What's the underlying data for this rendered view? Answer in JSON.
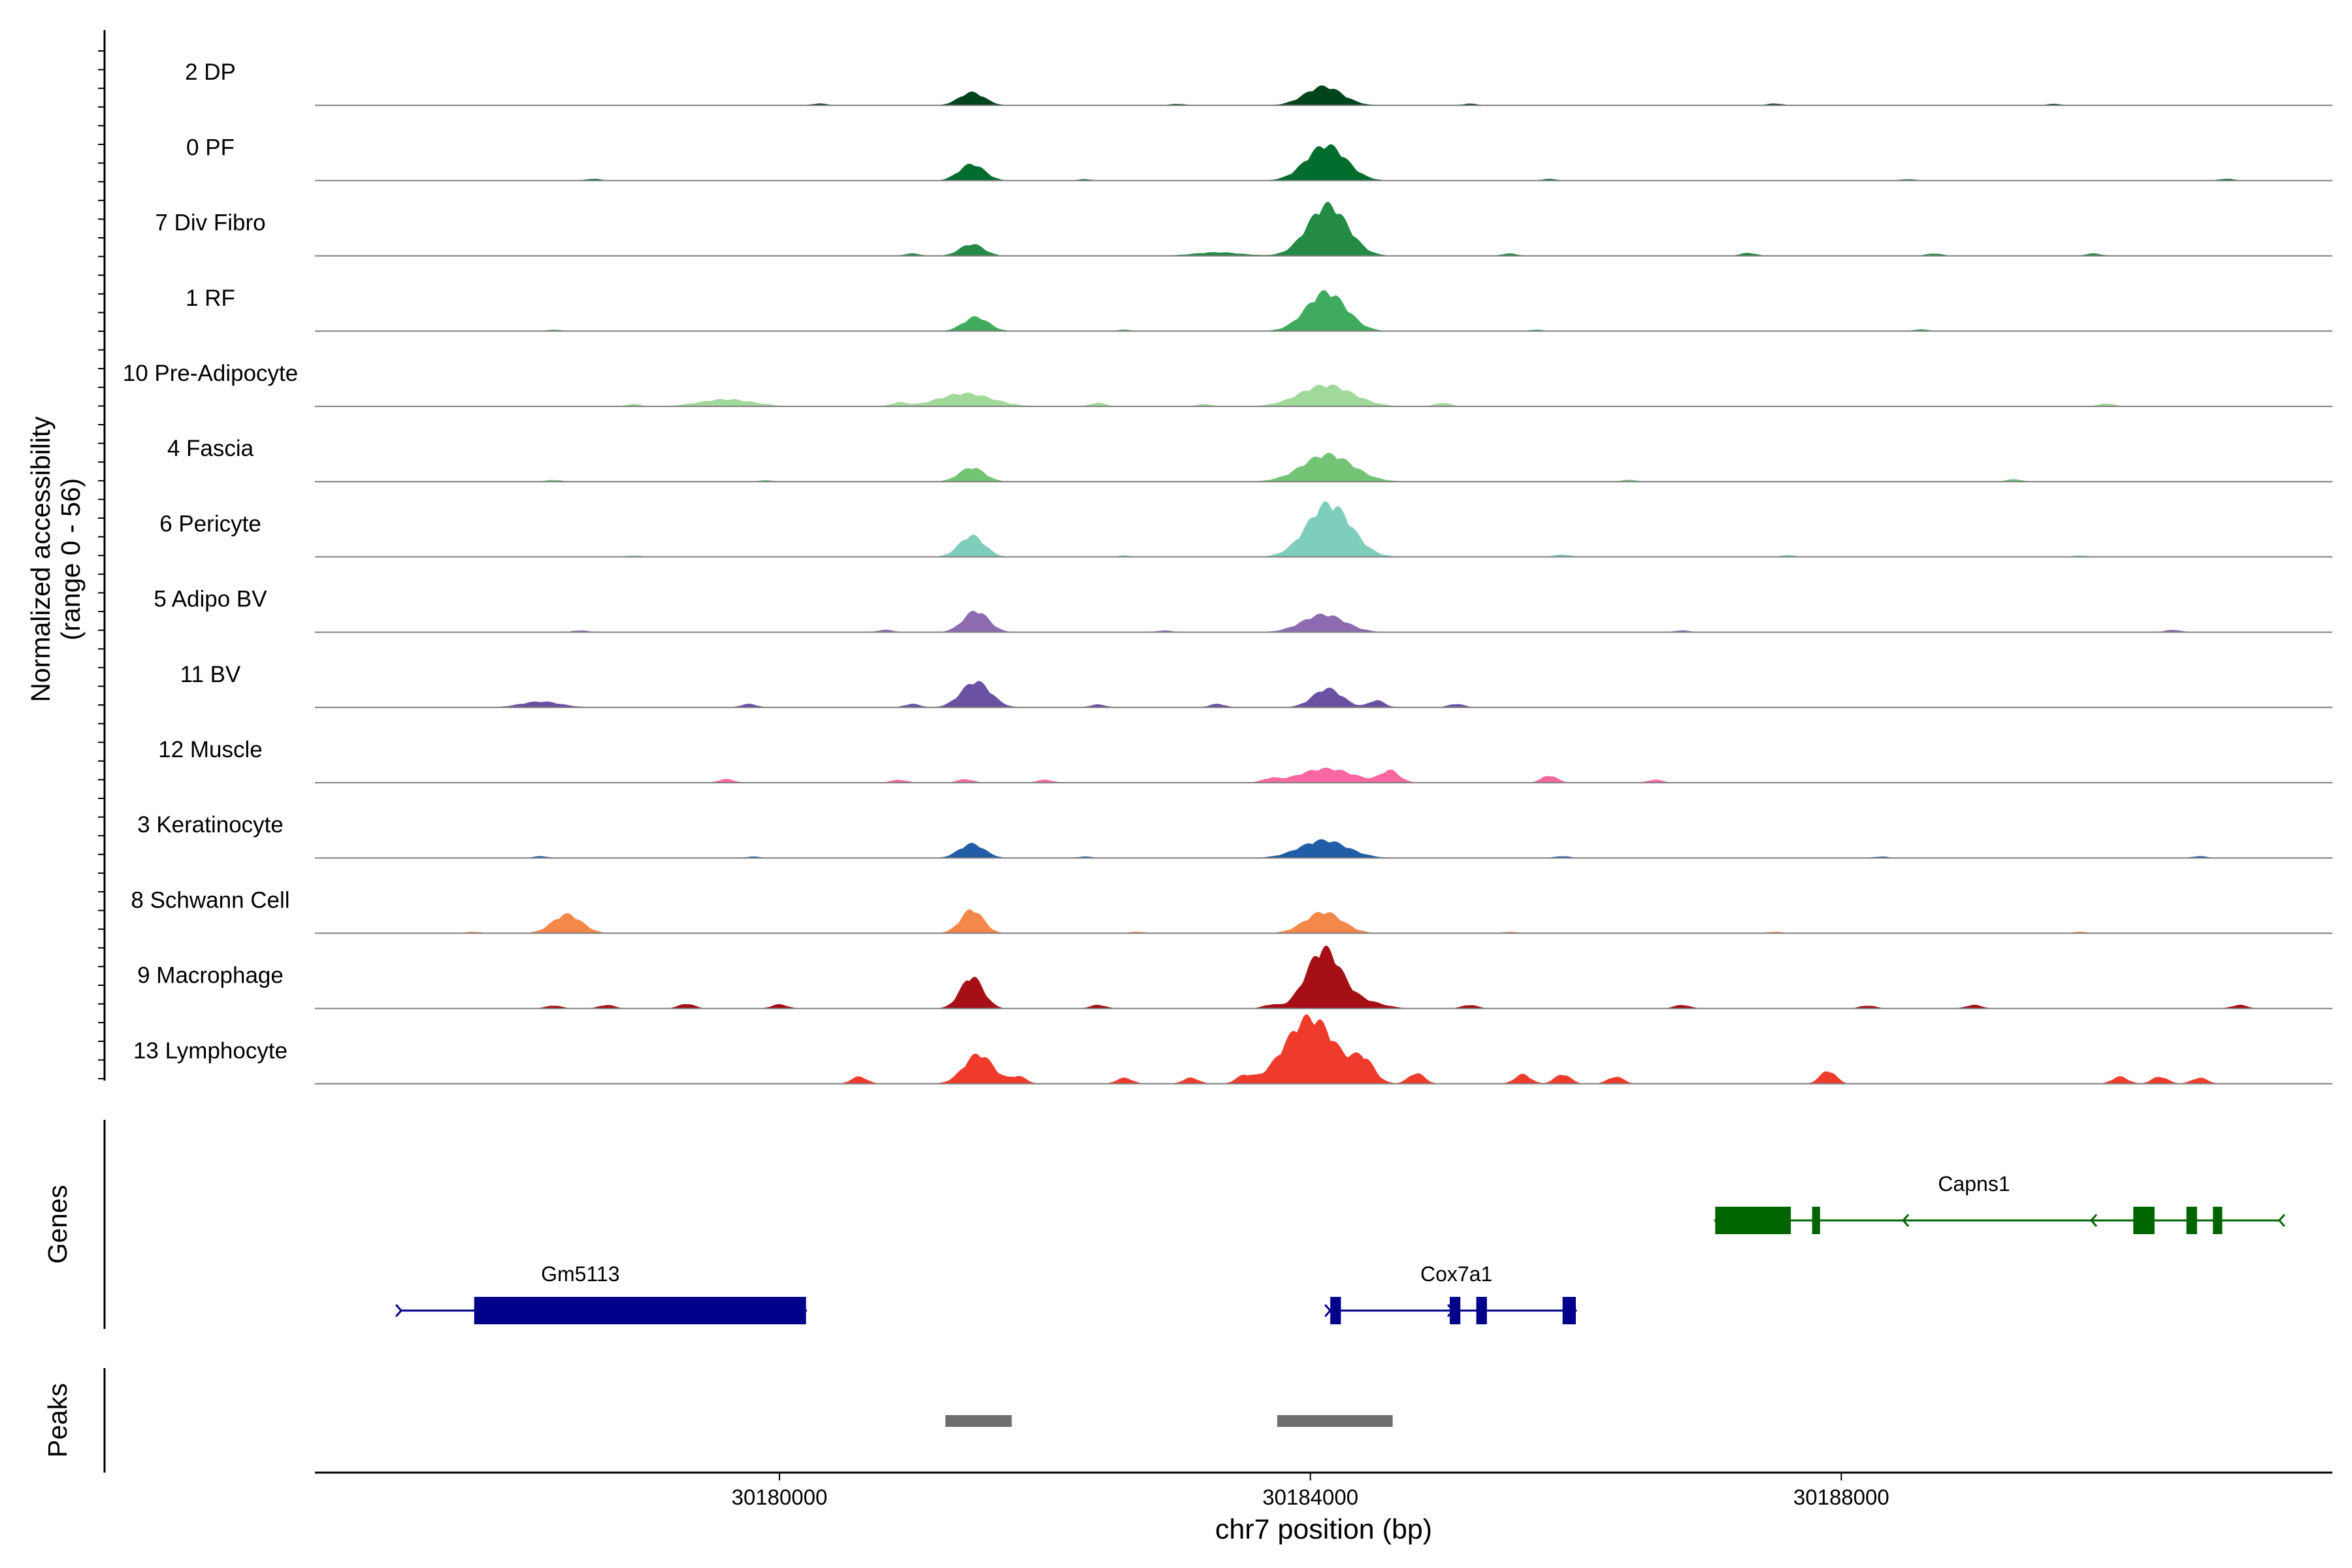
{
  "chart_data": {
    "type": "area",
    "title": "",
    "ylabel_line1": "Normalized accessibility",
    "ylabel_line2": "(range 0 - 56)",
    "xlabel": "chr7 position (bp)",
    "xlim": [
      30176500,
      30191700
    ],
    "ylim": [
      0,
      56
    ],
    "x_ticks": [
      {
        "value": 30180000,
        "label": "30180000"
      },
      {
        "value": 30184000,
        "label": "30184000"
      },
      {
        "value": 30188000,
        "label": "30188000"
      }
    ],
    "series": [
      {
        "name": "2 DP",
        "color": "#00441b",
        "peaks": [
          [
            30181450,
            11,
            95
          ],
          [
            30184100,
            16,
            140
          ]
        ],
        "minor": [
          [
            30180300,
            1.5
          ],
          [
            30183000,
            1.2
          ],
          [
            30185200,
            1.4
          ],
          [
            30187500,
            1.5
          ],
          [
            30189600,
            1.2
          ]
        ]
      },
      {
        "name": "0 PF",
        "color": "#006d2c",
        "peaks": [
          [
            30181450,
            14,
            95
          ],
          [
            30184120,
            30,
            150
          ]
        ],
        "minor": [
          [
            30178600,
            1.5
          ],
          [
            30182300,
            1.2
          ],
          [
            30185800,
            1.4
          ],
          [
            30188500,
            1.2
          ],
          [
            30190900,
            1.5
          ]
        ]
      },
      {
        "name": "7 Div Fibro",
        "color": "#238b45",
        "peaks": [
          [
            30181450,
            10,
            90
          ],
          [
            30184130,
            43,
            150
          ],
          [
            30183300,
            3,
            180
          ]
        ],
        "minor": [
          [
            30181000,
            2
          ],
          [
            30185500,
            2
          ],
          [
            30187300,
            2.5
          ],
          [
            30188700,
            2
          ],
          [
            30189900,
            2
          ]
        ]
      },
      {
        "name": "1 RF",
        "color": "#41ab5d",
        "peaks": [
          [
            30181480,
            12,
            95
          ],
          [
            30184120,
            33,
            150
          ]
        ],
        "minor": [
          [
            30178300,
            1.2
          ],
          [
            30182600,
            1.2
          ],
          [
            30185700,
            1.2
          ],
          [
            30188600,
            1.5
          ]
        ]
      },
      {
        "name": "10 Pre-Adipocyte",
        "color": "#a1d99b",
        "peaks": [
          [
            30181400,
            11,
            200
          ],
          [
            30184120,
            18,
            200
          ],
          [
            30179600,
            6,
            200
          ]
        ],
        "minor": [
          [
            30178900,
            2
          ],
          [
            30180900,
            3
          ],
          [
            30182400,
            3
          ],
          [
            30183200,
            2
          ],
          [
            30185000,
            3
          ],
          [
            30190000,
            2.5
          ]
        ]
      },
      {
        "name": "4 Fascia",
        "color": "#74c476",
        "peaks": [
          [
            30181450,
            12,
            95
          ],
          [
            30184130,
            23,
            190
          ]
        ],
        "minor": [
          [
            30178300,
            1.5
          ],
          [
            30179900,
            1.2
          ],
          [
            30186400,
            1.5
          ],
          [
            30189300,
            2
          ]
        ]
      },
      {
        "name": "6 Pericyte",
        "color": "#7fcdbb",
        "peaks": [
          [
            30181450,
            18,
            95
          ],
          [
            30184140,
            45,
            165
          ]
        ],
        "minor": [
          [
            30178900,
            1.2
          ],
          [
            30182600,
            1.2
          ],
          [
            30185900,
            2
          ],
          [
            30187600,
            1.5
          ],
          [
            30189800,
            1.2
          ]
        ]
      },
      {
        "name": "5 Adipo BV",
        "color": "#8c6bb1",
        "peaks": [
          [
            30181480,
            18,
            95
          ],
          [
            30184100,
            15,
            160
          ]
        ],
        "minor": [
          [
            30178500,
            1.5
          ],
          [
            30180800,
            2
          ],
          [
            30182900,
            1.5
          ],
          [
            30186800,
            1.5
          ],
          [
            30190500,
            2
          ]
        ]
      },
      {
        "name": "11 BV",
        "color": "#6a51a3",
        "peaks": [
          [
            30181480,
            22,
            110
          ],
          [
            30184130,
            16,
            110
          ],
          [
            30178200,
            5,
            150
          ]
        ],
        "minor": [
          [
            30179770,
            3
          ],
          [
            30181000,
            3
          ],
          [
            30182400,
            2.5
          ],
          [
            30183300,
            3
          ],
          [
            30184500,
            6
          ],
          [
            30185100,
            3
          ]
        ]
      },
      {
        "name": "12 Muscle",
        "color": "#f768a1",
        "peaks": [
          [
            30184120,
            12,
            200
          ],
          [
            30184600,
            10,
            70
          ]
        ],
        "minor": [
          [
            30179600,
            3
          ],
          [
            30180900,
            2.5
          ],
          [
            30181400,
            3
          ],
          [
            30182000,
            2.5
          ],
          [
            30183700,
            3
          ],
          [
            30185800,
            6
          ],
          [
            30186600,
            2.5
          ]
        ]
      },
      {
        "name": "3 Keratinocyte",
        "color": "#225ea8",
        "peaks": [
          [
            30181450,
            12,
            95
          ],
          [
            30184100,
            15,
            180
          ]
        ],
        "minor": [
          [
            30178200,
            1.5
          ],
          [
            30179800,
            1.2
          ],
          [
            30182300,
            1.2
          ],
          [
            30185900,
            1.5
          ],
          [
            30188300,
            1.2
          ],
          [
            30190700,
            1.5
          ]
        ]
      },
      {
        "name": "8 Schwann Cell",
        "color": "#f4874a",
        "peaks": [
          [
            30178400,
            16,
            110
          ],
          [
            30181450,
            20,
            85
          ],
          [
            30184100,
            18,
            140
          ]
        ],
        "minor": [
          [
            30177700,
            1.2
          ],
          [
            30182700,
            1.2
          ],
          [
            30185500,
            1.2
          ],
          [
            30187500,
            1.2
          ],
          [
            30189800,
            1.2
          ]
        ]
      },
      {
        "name": "9 Macrophage",
        "color": "#a50f15",
        "peaks": [
          [
            30181450,
            27,
            85
          ],
          [
            30184100,
            50,
            130
          ],
          [
            30184400,
            6,
            140
          ]
        ],
        "minor": [
          [
            30178300,
            2.5
          ],
          [
            30178700,
            3
          ],
          [
            30179300,
            4
          ],
          [
            30180000,
            3.5
          ],
          [
            30182400,
            3
          ],
          [
            30183700,
            3
          ],
          [
            30185200,
            3
          ],
          [
            30186800,
            3
          ],
          [
            30188200,
            2.5
          ],
          [
            30189000,
            3
          ],
          [
            30191000,
            3
          ]
        ]
      },
      {
        "name": "13 Lymphocyte",
        "color": "#ef3b2c",
        "peaks": [
          [
            30181500,
            25,
            110
          ],
          [
            30184000,
            56,
            190
          ],
          [
            30184400,
            18,
            80
          ]
        ],
        "minor": [
          [
            30180600,
            6
          ],
          [
            30181800,
            6
          ],
          [
            30182600,
            5
          ],
          [
            30183100,
            5
          ],
          [
            30183500,
            6
          ],
          [
            30184800,
            9
          ],
          [
            30185600,
            8
          ],
          [
            30185900,
            8
          ],
          [
            30186300,
            6
          ],
          [
            30187900,
            11
          ],
          [
            30190100,
            6
          ],
          [
            30190400,
            6
          ],
          [
            30190700,
            5
          ]
        ]
      }
    ],
    "genes": [
      {
        "name": "Capns1",
        "color": "#006400",
        "strand": "-",
        "row": 1,
        "label_x": 30189000,
        "start": 30187050,
        "end": 30191300,
        "exons": [
          [
            30187050,
            30187620
          ],
          [
            30187780,
            30187840
          ],
          [
            30190200,
            30190360
          ],
          [
            30190600,
            30190680
          ],
          [
            30190800,
            30190870
          ]
        ]
      },
      {
        "name": "Gm5113",
        "color": "#00008b",
        "strand": "+",
        "row": 2,
        "label_x": 30178500,
        "start": 30177150,
        "end": 30180200,
        "exons": [
          [
            30177700,
            30180200
          ]
        ]
      },
      {
        "name": "Cox7a1",
        "color": "#00008b",
        "strand": "+",
        "row": 2,
        "label_x": 30185100,
        "start": 30184150,
        "end": 30186000,
        "exons": [
          [
            30184150,
            30184230
          ],
          [
            30185050,
            30185130
          ],
          [
            30185250,
            30185330
          ],
          [
            30185900,
            30186000
          ]
        ]
      }
    ],
    "peaks_track": [
      [
        30181250,
        30181750
      ],
      [
        30183750,
        30184620
      ]
    ],
    "panel_labels": {
      "genes": "Genes",
      "peaks": "Peaks"
    }
  }
}
